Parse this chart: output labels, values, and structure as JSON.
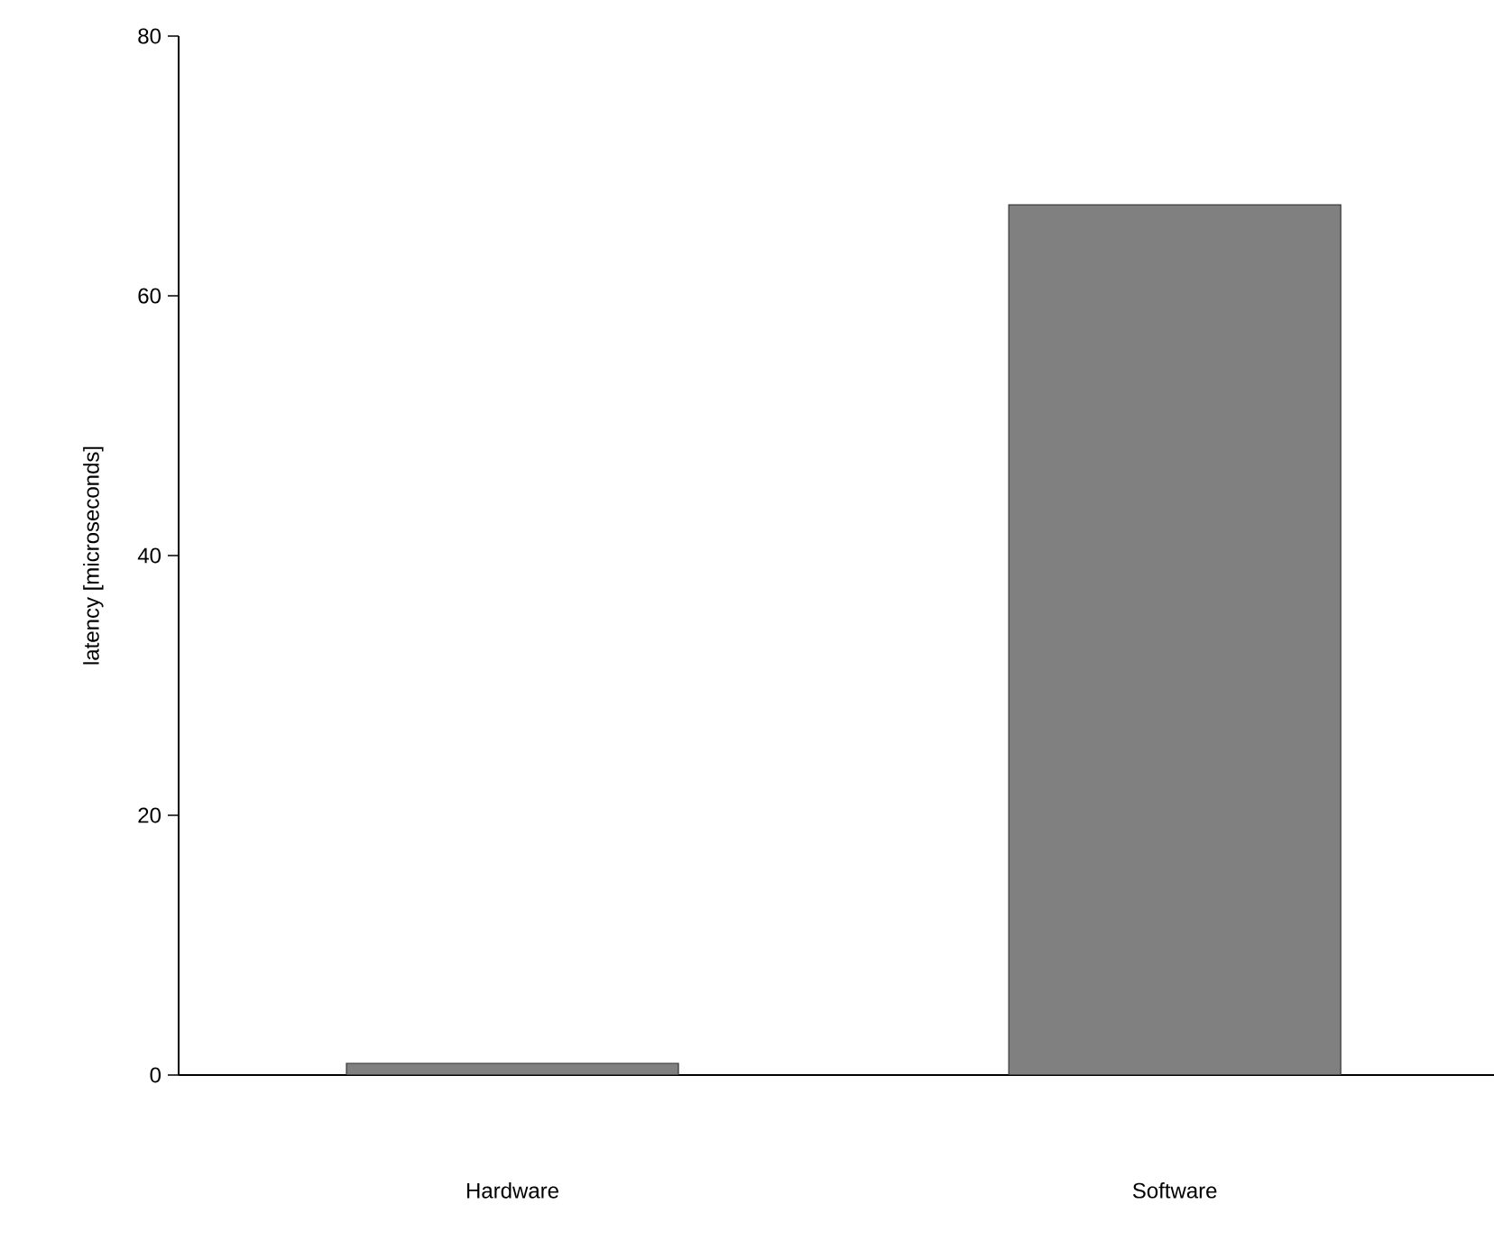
{
  "chart_data": {
    "type": "bar",
    "ylabel": "latency [microseconds]",
    "categories": [
      "Hardware",
      "Software"
    ],
    "values": [
      0.9,
      67
    ],
    "color": "#808080",
    "ylim": [
      0,
      80
    ],
    "yticks": [
      0,
      20,
      40,
      60,
      80
    ],
    "grid": false
  }
}
